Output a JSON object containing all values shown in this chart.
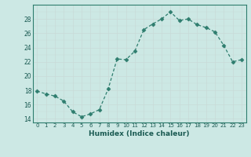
{
  "x": [
    0,
    1,
    2,
    3,
    4,
    5,
    6,
    7,
    8,
    9,
    10,
    11,
    12,
    13,
    14,
    15,
    16,
    17,
    18,
    19,
    20,
    21,
    22,
    23
  ],
  "y": [
    17.9,
    17.5,
    17.2,
    16.5,
    15.0,
    14.3,
    14.7,
    15.3,
    18.2,
    22.4,
    22.3,
    23.5,
    26.5,
    27.3,
    28.0,
    29.0,
    27.8,
    28.0,
    27.2,
    26.8,
    26.2,
    24.3,
    22.0,
    22.3
  ],
  "line_color": "#2e7d6e",
  "marker": "D",
  "marker_size": 2.5,
  "bg_color": "#cce8e4",
  "grid_major_color": "#aacfcb",
  "grid_minor_color": "#bbdbd7",
  "xlabel": "Humidex (Indice chaleur)",
  "ylim": [
    13.5,
    30
  ],
  "xlim": [
    -0.5,
    23.5
  ],
  "yticks": [
    14,
    16,
    18,
    20,
    22,
    24,
    26,
    28
  ],
  "xticks": [
    0,
    1,
    2,
    3,
    4,
    5,
    6,
    7,
    8,
    9,
    10,
    11,
    12,
    13,
    14,
    15,
    16,
    17,
    18,
    19,
    20,
    21,
    22,
    23
  ]
}
